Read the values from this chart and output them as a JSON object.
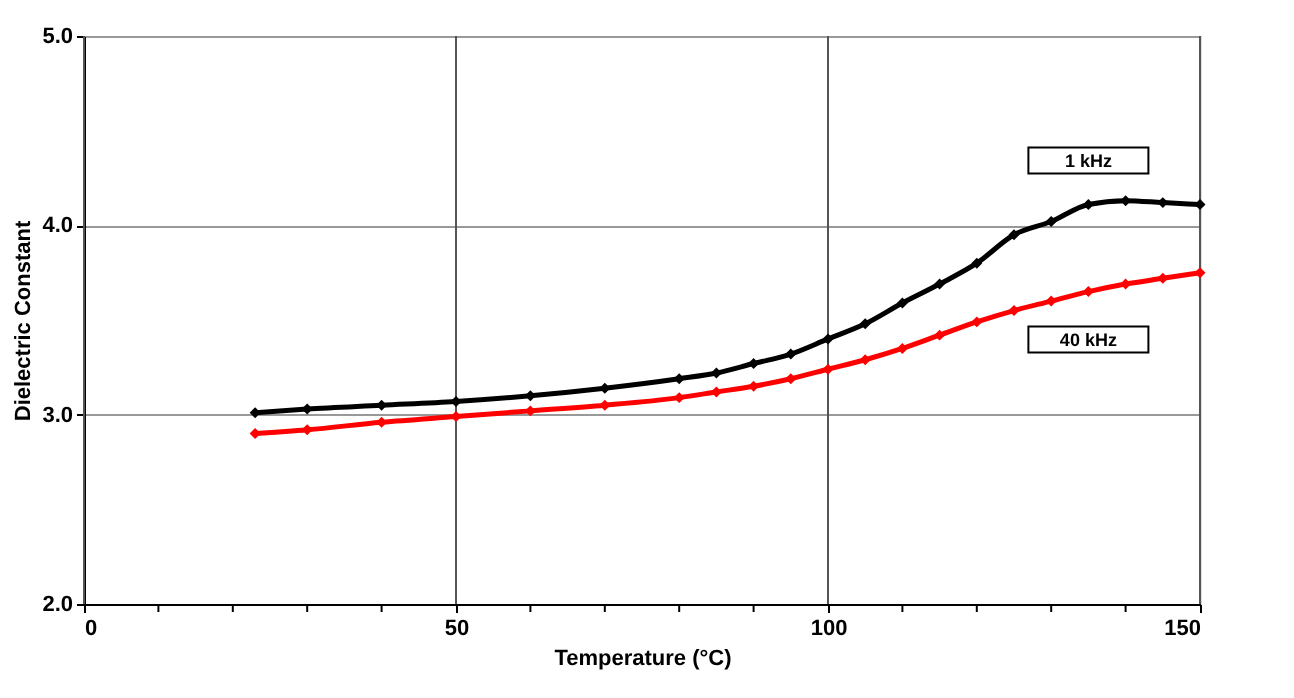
{
  "chart_data": {
    "type": "line",
    "xlabel": "Temperature (°C)",
    "ylabel": "Dielectric Constant",
    "xlim": [
      0,
      150
    ],
    "ylim": [
      2.0,
      5.0
    ],
    "xticks": [
      0,
      {
        "value": 10,
        "label": null
      },
      {
        "value": 20,
        "label": null
      },
      {
        "value": 30,
        "label": null
      },
      {
        "value": 40,
        "label": null
      },
      50,
      {
        "value": 60,
        "label": null
      },
      {
        "value": 70,
        "label": null
      },
      {
        "value": 80,
        "label": null
      },
      {
        "value": 90,
        "label": null
      },
      100,
      {
        "value": 110,
        "label": null
      },
      {
        "value": 120,
        "label": null
      },
      {
        "value": 130,
        "label": null
      },
      {
        "value": 140,
        "label": null
      },
      150
    ],
    "yticks": [
      {
        "value": 2,
        "label": "2.0"
      },
      {
        "value": 3,
        "label": "3.0"
      },
      {
        "value": 4,
        "label": "4.0"
      },
      {
        "value": 5,
        "label": "5.0"
      }
    ],
    "grid": true,
    "marker": "diamond",
    "line_style": "solid",
    "x": [
      23,
      30,
      40,
      50,
      60,
      70,
      80,
      85,
      90,
      95,
      100,
      105,
      110,
      115,
      120,
      125,
      130,
      135,
      140,
      145,
      150
    ],
    "series": [
      {
        "color": "#000000",
        "values": [
          3.01,
          3.03,
          3.05,
          3.07,
          3.1,
          3.14,
          3.19,
          3.22,
          3.27,
          3.32,
          3.4,
          3.48,
          3.59,
          3.69,
          3.8,
          3.95,
          4.02,
          4.11,
          4.13,
          4.12,
          4.11
        ]
      },
      {
        "color": "#ff0000",
        "values": [
          2.9,
          2.92,
          2.96,
          2.99,
          3.02,
          3.05,
          3.09,
          3.12,
          3.15,
          3.19,
          3.24,
          3.29,
          3.35,
          3.42,
          3.49,
          3.55,
          3.6,
          3.65,
          3.69,
          3.72,
          3.75
        ]
      }
    ],
    "annotations": [
      "1 kHz",
      "40 kHz"
    ]
  }
}
